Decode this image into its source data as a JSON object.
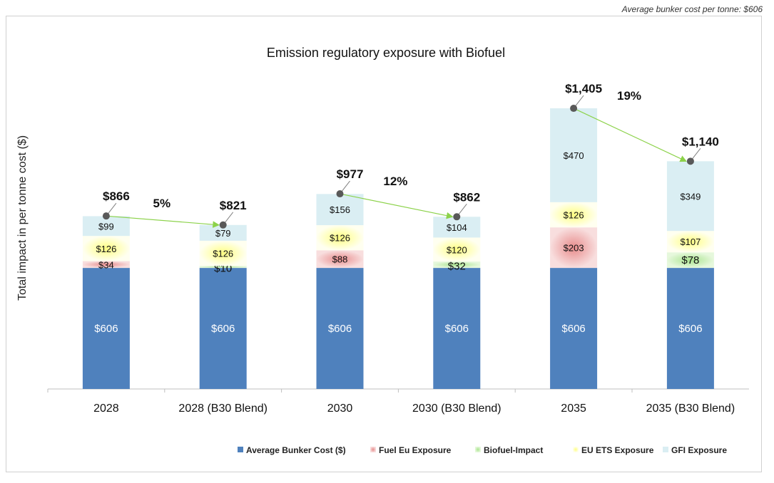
{
  "note": "Average bunker cost per tonne: $606",
  "chart_data": {
    "type": "bar",
    "stacked": true,
    "title": "Emission regulatory exposure with Biofuel",
    "xlabel": "",
    "ylabel": "Total impact in per tonne cost ($)",
    "ylim": [
      0,
      1450
    ],
    "grid": false,
    "legend_position": "bottom-right",
    "categories": [
      "2028",
      "2028 (B30 Blend)",
      "2030",
      "2030 (B30 Blend)",
      "2035",
      "2035 (B30 Blend)"
    ],
    "series": [
      {
        "name": "Average Bunker Cost ($)",
        "color": "#4f81bd",
        "values": [
          606,
          606,
          606,
          606,
          606,
          606
        ],
        "labels": [
          "$606",
          "$606",
          "$606",
          "$606",
          "$606",
          "$606"
        ]
      },
      {
        "name": "Fuel Eu Exposure",
        "color": "#e6a0a0",
        "values": [
          34,
          0,
          88,
          0,
          203,
          0
        ],
        "labels": [
          "$34",
          "",
          "$88",
          "",
          "$203",
          ""
        ]
      },
      {
        "name": "Biofuel-Impact",
        "color": "#c6efb4",
        "values": [
          0,
          10,
          0,
          32,
          0,
          78
        ],
        "labels": [
          "",
          "$10",
          "",
          "$32",
          "",
          "$78"
        ]
      },
      {
        "name": "EU ETS Exposure",
        "color": "#ffff9c",
        "values": [
          126,
          126,
          126,
          120,
          126,
          107
        ],
        "labels": [
          "$126",
          "$126",
          "$126",
          "$120",
          "$126",
          "$107"
        ]
      },
      {
        "name": "GFI Exposure",
        "color": "#daeef3",
        "values": [
          99,
          79,
          156,
          104,
          470,
          349
        ],
        "labels": [
          "$99",
          "$79",
          "$156",
          "$104",
          "$470",
          "$349"
        ]
      }
    ],
    "totals": [
      866,
      821,
      977,
      862,
      1405,
      1140
    ],
    "total_labels": [
      "$866",
      "$821",
      "$977",
      "$862",
      "$1,405",
      "$1,140"
    ],
    "reductions": [
      {
        "from": 0,
        "to": 1,
        "label": "5%"
      },
      {
        "from": 2,
        "to": 3,
        "label": "12%"
      },
      {
        "from": 4,
        "to": 5,
        "label": "19%"
      }
    ]
  }
}
